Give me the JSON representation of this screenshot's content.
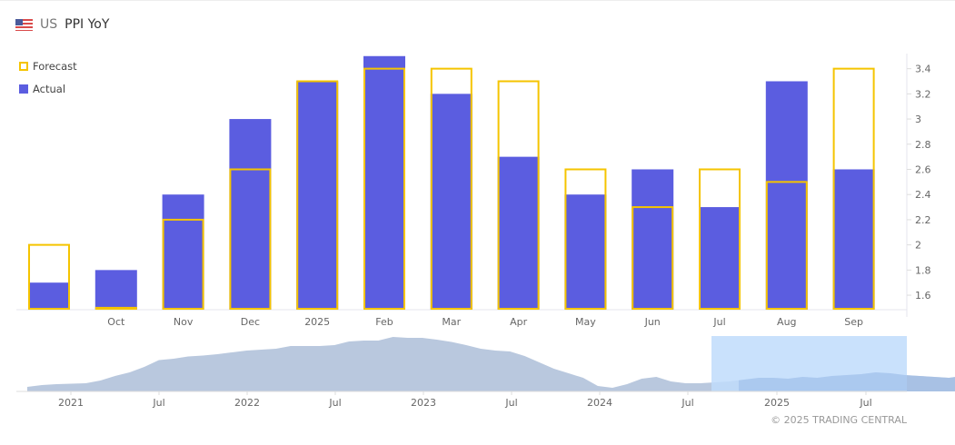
{
  "header": {
    "country": "US",
    "title": "PPI YoY",
    "flag_icon": "us-flag-icon"
  },
  "legend": {
    "forecast": "Forecast",
    "actual": "Actual"
  },
  "colors": {
    "actual": "#5b5de0",
    "forecast": "#f5c400",
    "navigator": "#b9c8de",
    "selection": "#bfdcfb",
    "navigator_selected": "#9bbbea"
  },
  "chart_data": {
    "type": "bar",
    "title": "US PPI YoY",
    "categories": [
      "",
      "Oct",
      "Nov",
      "Dec",
      "2025",
      "Feb",
      "Mar",
      "Apr",
      "May",
      "Jun",
      "Jul",
      "Aug",
      "Sep"
    ],
    "series": [
      {
        "name": "Actual",
        "values": [
          1.7,
          1.8,
          2.4,
          3.0,
          3.3,
          3.5,
          3.2,
          2.7,
          2.4,
          2.6,
          2.3,
          3.3,
          2.6
        ]
      },
      {
        "name": "Forecast",
        "values": [
          2.0,
          1.5,
          2.2,
          2.6,
          3.3,
          3.4,
          3.4,
          3.3,
          2.6,
          2.3,
          2.6,
          2.5,
          3.4
        ]
      }
    ],
    "yticks": [
      1.6,
      1.8,
      2,
      2.2,
      2.4,
      2.6,
      2.8,
      3,
      3.2,
      3.4
    ],
    "ylim": [
      1.485,
      3.52
    ],
    "yaxis_position": "right",
    "legend_position": "top-left",
    "navigator": {
      "type": "area",
      "tick_labels": [
        "2021",
        "Jul",
        "2022",
        "Jul",
        "2023",
        "Jul",
        "2024",
        "Jul",
        "2025",
        "Jul"
      ],
      "values": [
        0.6,
        1.0,
        1.2,
        1.3,
        1.4,
        2.0,
        3.0,
        3.8,
        5.0,
        6.5,
        6.8,
        7.3,
        7.5,
        7.8,
        8.2,
        8.6,
        8.8,
        9.0,
        9.6,
        9.6,
        9.6,
        9.8,
        10.6,
        10.8,
        10.8,
        11.6,
        11.4,
        11.4,
        11.0,
        10.5,
        9.8,
        9.0,
        8.6,
        8.4,
        7.4,
        6.0,
        4.6,
        3.6,
        2.6,
        0.8,
        0.4,
        1.2,
        2.4,
        2.8,
        1.8,
        1.4,
        1.4,
        1.6,
        1.8,
        2.2,
        2.6,
        2.6,
        2.4,
        2.8,
        2.6,
        3.0,
        3.2,
        3.4,
        3.8,
        3.6,
        3.2,
        3.0,
        2.8,
        2.6,
        3.0,
        3.6,
        3.0
      ],
      "selection_range": [
        "Nov 2024",
        "Sep 2025"
      ]
    }
  },
  "footer": {
    "copyright": "© 2025 TRADING CENTRAL"
  }
}
